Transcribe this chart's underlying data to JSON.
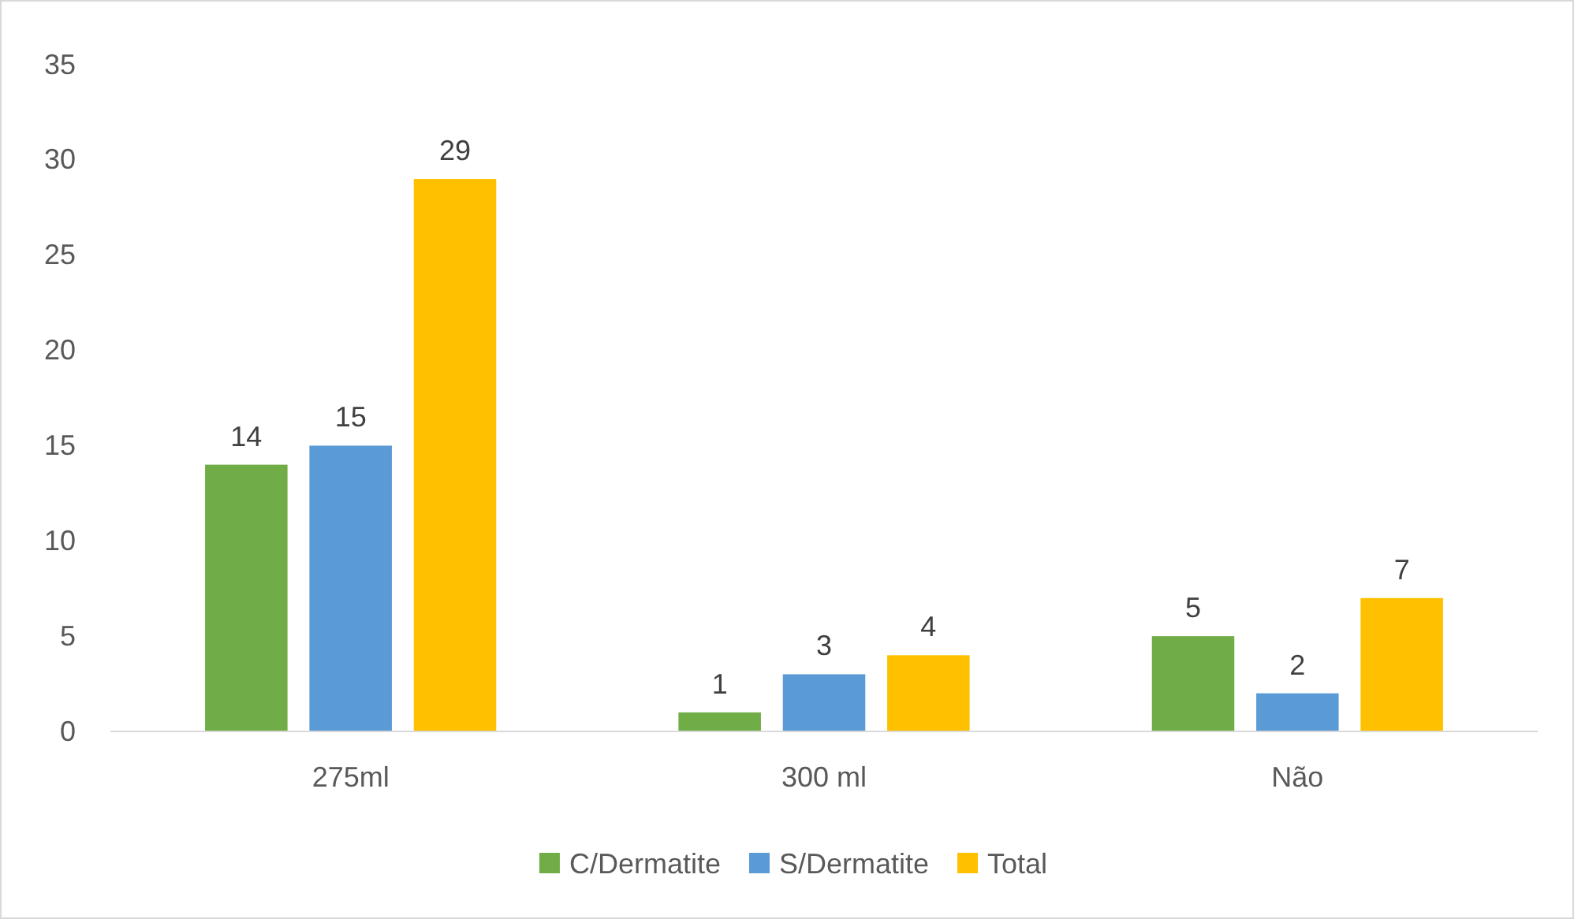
{
  "chart_data": {
    "type": "bar",
    "categories": [
      "275ml",
      "300 ml",
      "Não"
    ],
    "series": [
      {
        "name": "C/Dermatite",
        "color": "#70ad47",
        "values": [
          14,
          1,
          5
        ]
      },
      {
        "name": "S/Dermatite",
        "color": "#5b9bd5",
        "values": [
          15,
          3,
          2
        ]
      },
      {
        "name": "Total",
        "color": "#ffc000",
        "values": [
          29,
          4,
          7
        ]
      }
    ],
    "ylim": [
      0,
      35
    ],
    "yticks": [
      0,
      5,
      10,
      15,
      20,
      25,
      30,
      35
    ],
    "grid": false,
    "legend": "bottom",
    "data_labels": true
  }
}
